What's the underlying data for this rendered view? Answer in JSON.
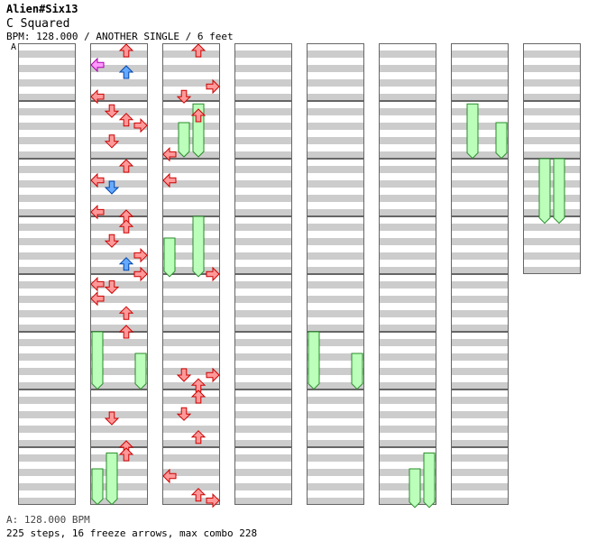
{
  "header": {
    "artist": "Alien#Six13",
    "title": "C Squared",
    "info": "BPM: 128.000 / ANOTHER SINGLE / 6 feet"
  },
  "section_label": "A",
  "footer": {
    "bpm_line": "A: 128.000 BPM",
    "stats": "225 steps, 16 freeze arrows, max combo 228"
  },
  "colors": {
    "left": "#ff9999",
    "down": "#ff9999",
    "up": "#ff9999",
    "right": "#ff9999",
    "blue": "#66aaff",
    "pink": "#ff99ff",
    "freeze": "#bbffbb",
    "stripe": "#cccccc",
    "outline": "#cc0000"
  },
  "chart_data": {
    "type": "step-chart",
    "lanes": [
      "left",
      "down",
      "up",
      "right"
    ],
    "columns": 8,
    "measures_per_column": 8,
    "notes": [
      {
        "c": 1,
        "m": 0,
        "lane": "up",
        "b": 0
      },
      {
        "c": 1,
        "m": 0,
        "lane": "left",
        "b": 1,
        "col": "pink"
      },
      {
        "c": 1,
        "m": 0,
        "lane": "up",
        "b": 1.5,
        "col": "blue"
      },
      {
        "c": 1,
        "m": 0,
        "lane": "left",
        "b": 3.2
      },
      {
        "c": 1,
        "m": 1,
        "lane": "down",
        "b": 0.2
      },
      {
        "c": 1,
        "m": 1,
        "lane": "up",
        "b": 0.8
      },
      {
        "c": 1,
        "m": 1,
        "lane": "right",
        "b": 1.2
      },
      {
        "c": 1,
        "m": 1,
        "lane": "down",
        "b": 2.3
      },
      {
        "c": 1,
        "m": 2,
        "lane": "up",
        "b": 0
      },
      {
        "c": 1,
        "m": 2,
        "lane": "left",
        "b": 1
      },
      {
        "c": 1,
        "m": 2,
        "lane": "down",
        "b": 1.5,
        "col": "blue"
      },
      {
        "c": 1,
        "m": 2,
        "lane": "left",
        "b": 3.2
      },
      {
        "c": 1,
        "m": 2,
        "lane": "up",
        "b": 3.5
      },
      {
        "c": 1,
        "m": 3,
        "lane": "up",
        "b": 0.2
      },
      {
        "c": 1,
        "m": 3,
        "lane": "down",
        "b": 1.2
      },
      {
        "c": 1,
        "m": 3,
        "lane": "right",
        "b": 2.2
      },
      {
        "c": 1,
        "m": 3,
        "lane": "up",
        "b": 2.8,
        "col": "blue"
      },
      {
        "c": 1,
        "m": 3,
        "lane": "right",
        "b": 3.5
      },
      {
        "c": 1,
        "m": 4,
        "lane": "left",
        "b": 0.2
      },
      {
        "c": 1,
        "m": 4,
        "lane": "down",
        "b": 0.4
      },
      {
        "c": 1,
        "m": 4,
        "lane": "left",
        "b": 1.2
      },
      {
        "c": 1,
        "m": 4,
        "lane": "up",
        "b": 2.2
      },
      {
        "c": 1,
        "m": 4,
        "lane": "up",
        "b": 3.5
      },
      {
        "c": 1,
        "m": 6,
        "lane": "down",
        "b": 1.5
      },
      {
        "c": 1,
        "m": 6,
        "lane": "up",
        "b": 3.5
      },
      {
        "c": 1,
        "m": 7,
        "lane": "up",
        "b": 0
      },
      {
        "c": 2,
        "m": 0,
        "lane": "up",
        "b": 0
      },
      {
        "c": 2,
        "m": 0,
        "lane": "down",
        "b": 3.2
      },
      {
        "c": 2,
        "m": 0,
        "lane": "right",
        "b": 2.5
      },
      {
        "c": 2,
        "m": 1,
        "lane": "up",
        "b": 0.5
      },
      {
        "c": 2,
        "m": 1,
        "lane": "left",
        "b": 3.2
      },
      {
        "c": 2,
        "m": 2,
        "lane": "left",
        "b": 1
      },
      {
        "c": 2,
        "m": 3,
        "lane": "right",
        "b": 3.5
      },
      {
        "c": 2,
        "m": 5,
        "lane": "down",
        "b": 2.5
      },
      {
        "c": 2,
        "m": 5,
        "lane": "right",
        "b": 2.5
      },
      {
        "c": 2,
        "m": 5,
        "lane": "up",
        "b": 3.2
      },
      {
        "c": 2,
        "m": 6,
        "lane": "up",
        "b": 0
      },
      {
        "c": 2,
        "m": 6,
        "lane": "down",
        "b": 1.2
      },
      {
        "c": 2,
        "m": 6,
        "lane": "up",
        "b": 2.8
      },
      {
        "c": 2,
        "m": 7,
        "lane": "left",
        "b": 1.5
      },
      {
        "c": 2,
        "m": 7,
        "lane": "up",
        "b": 2.8
      },
      {
        "c": 2,
        "m": 7,
        "lane": "right",
        "b": 3.2
      }
    ],
    "freezes": [
      {
        "c": 2,
        "lane": "down",
        "from_m": 1,
        "from_b": 1.5,
        "to_m": 1,
        "to_b": 3.5
      },
      {
        "c": 2,
        "lane": "up",
        "from_m": 1,
        "from_b": 0.2,
        "to_m": 1,
        "to_b": 3.5
      },
      {
        "c": 2,
        "lane": "left",
        "from_m": 3,
        "from_b": 1.5,
        "to_m": 3,
        "to_b": 3.8
      },
      {
        "c": 2,
        "lane": "up",
        "from_m": 3,
        "from_b": 0,
        "to_m": 3,
        "to_b": 3.8
      },
      {
        "c": 1,
        "lane": "left",
        "from_m": 5,
        "from_b": 0,
        "to_m": 5,
        "to_b": 3.6
      },
      {
        "c": 1,
        "lane": "right",
        "from_m": 5,
        "from_b": 1.5,
        "to_m": 5,
        "to_b": 3.6
      },
      {
        "c": 1,
        "lane": "down",
        "from_m": 7,
        "from_b": 0.4,
        "to_m": 7,
        "to_b": 3.6
      },
      {
        "c": 1,
        "lane": "left",
        "from_m": 7,
        "from_b": 1.5,
        "to_m": 7,
        "to_b": 3.6
      },
      {
        "c": 4,
        "lane": "left",
        "from_m": 5,
        "from_b": 0,
        "to_m": 5,
        "to_b": 3.6
      },
      {
        "c": 4,
        "lane": "right",
        "from_m": 5,
        "from_b": 1.5,
        "to_m": 5,
        "to_b": 3.6
      },
      {
        "c": 5,
        "lane": "up",
        "from_m": 7,
        "from_b": 1.5,
        "to_m": 7,
        "to_b": 3.8
      },
      {
        "c": 5,
        "lane": "right",
        "from_m": 7,
        "from_b": 0.4,
        "to_m": 7,
        "to_b": 3.8
      },
      {
        "c": 6,
        "lane": "down",
        "from_m": 1,
        "from_b": 0.2,
        "to_m": 1,
        "to_b": 3.6
      },
      {
        "c": 6,
        "lane": "right",
        "from_m": 1,
        "from_b": 1.5,
        "to_m": 1,
        "to_b": 3.6
      },
      {
        "c": 7,
        "lane": "down",
        "from_m": 2,
        "from_b": 0,
        "to_m": 3,
        "to_b": 0.1
      },
      {
        "c": 7,
        "lane": "up",
        "from_m": 2,
        "from_b": 0,
        "to_m": 3,
        "to_b": 0.1
      }
    ],
    "col7_measures": 4
  }
}
